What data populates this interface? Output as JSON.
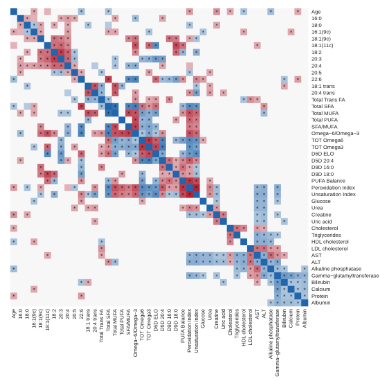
{
  "chart_data": {
    "type": "heatmap",
    "title": "",
    "xlabel": "",
    "ylabel": "",
    "variables": [
      "Age",
      "16:0",
      "18:0",
      "16:1(9c)",
      "18:1(9c)",
      "18:1(11c)",
      "18:2",
      "20:3",
      "20:4",
      "20:5",
      "22:6",
      "18:1 trans",
      "20:4 trans",
      "Total Trans FA",
      "Total SFA",
      "Total MUFA",
      "Total PUFA",
      "SFA/MUFA",
      "Omega−6/Omega−3",
      "TOT Omega6",
      "TOT Omega3",
      "D6D ELO",
      "D5D 20:4",
      "D9D 16:0",
      "D9D 18:0",
      "PUFA Balance",
      "Peroxidation Index",
      "Unsaturation Index",
      "Glucose",
      "Urea",
      "Creatine",
      "Uric acid",
      "Cholesterol",
      "Triglycerides",
      "HDL cholesterol",
      "LDL cholesterol",
      "AST",
      "ALT",
      "Alkaline phosphatase",
      "Gamma−glutamyltransferase",
      "Bilirubin",
      "Calcium",
      "Protein",
      "Albumin"
    ],
    "colors": {
      "negative": "#2166ac",
      "neutral": "#f7f7f7",
      "positive": "#b2182b"
    },
    "value_range": [
      -1,
      1
    ],
    "legend": "none",
    "significance_marker": "*",
    "correlations": [
      [
        10,
        14,
        0.8
      ],
      [
        10,
        17,
        -0.7
      ],
      [
        10,
        18,
        -0.75
      ],
      [
        10,
        21,
        0.6
      ],
      [
        10,
        22,
        -0.35
      ],
      [
        10,
        23,
        -0.4
      ],
      [
        10,
        24,
        -0.55
      ],
      [
        10,
        27,
        0.45
      ],
      [
        10,
        28,
        0.35
      ],
      [
        10,
        25,
        0.4
      ],
      [
        10,
        42,
        0.35
      ],
      [
        10,
        40,
        -0.3
      ],
      [
        11,
        12,
        0.7
      ],
      [
        11,
        15,
        0.7
      ],
      [
        11,
        13,
        -0.45
      ],
      [
        11,
        16,
        -0.4
      ],
      [
        11,
        27,
        -0.3
      ],
      [
        11,
        29,
        0.3
      ],
      [
        11,
        40,
        0.3
      ],
      [
        12,
        15,
        0.65
      ],
      [
        12,
        13,
        -0.4
      ],
      [
        12,
        18,
        0.35
      ],
      [
        12,
        26,
        0.4
      ],
      [
        12,
        27,
        -0.55
      ],
      [
        12,
        29,
        0.35
      ],
      [
        12,
        31,
        0.3
      ],
      [
        13,
        14,
        -0.35
      ],
      [
        13,
        18,
        0.4
      ],
      [
        13,
        20,
        0.3
      ],
      [
        13,
        21,
        0.35
      ],
      [
        13,
        23,
        0.45
      ],
      [
        13,
        34,
        -0.3
      ],
      [
        13,
        35,
        0.4
      ],
      [
        13,
        36,
        0.3
      ],
      [
        14,
        15,
        -0.9
      ],
      [
        14,
        17,
        -0.75
      ],
      [
        14,
        18,
        -0.8
      ],
      [
        14,
        19,
        0.55
      ],
      [
        14,
        20,
        0.4
      ],
      [
        14,
        21,
        0.55
      ],
      [
        14,
        25,
        -0.4
      ],
      [
        14,
        26,
        -0.7
      ],
      [
        14,
        27,
        -0.65
      ],
      [
        14,
        37,
        0.4
      ],
      [
        15,
        17,
        0.75
      ],
      [
        15,
        18,
        0.7
      ],
      [
        15,
        19,
        -0.55
      ],
      [
        15,
        20,
        -0.45
      ],
      [
        15,
        21,
        -0.55
      ],
      [
        15,
        25,
        0.4
      ],
      [
        15,
        26,
        0.7
      ],
      [
        15,
        27,
        0.6
      ],
      [
        15,
        37,
        -0.35
      ],
      [
        16,
        18,
        0.75
      ],
      [
        16,
        19,
        -0.4
      ],
      [
        16,
        20,
        -0.45
      ],
      [
        16,
        24,
        0.35
      ],
      [
        16,
        26,
        0.6
      ],
      [
        16,
        27,
        0.5
      ],
      [
        17,
        18,
        0.8
      ],
      [
        17,
        19,
        -0.45
      ],
      [
        17,
        20,
        -0.5
      ],
      [
        17,
        21,
        -0.4
      ],
      [
        17,
        26,
        0.5
      ],
      [
        17,
        27,
        0.45
      ],
      [
        18,
        19,
        -0.3
      ],
      [
        18,
        20,
        -0.5
      ],
      [
        18,
        21,
        -0.3
      ],
      [
        18,
        22,
        0.4
      ],
      [
        18,
        26,
        0.7
      ],
      [
        18,
        27,
        0.6
      ],
      [
        19,
        20,
        0.85
      ],
      [
        19,
        21,
        0.65
      ],
      [
        19,
        22,
        -0.75
      ],
      [
        19,
        24,
        -0.4
      ],
      [
        19,
        25,
        -0.55
      ],
      [
        19,
        26,
        -0.7
      ],
      [
        19,
        27,
        -0.65
      ],
      [
        19,
        28,
        0.3
      ],
      [
        20,
        21,
        0.75
      ],
      [
        20,
        22,
        -0.8
      ],
      [
        20,
        26,
        -0.65
      ],
      [
        20,
        27,
        -0.55
      ],
      [
        21,
        22,
        -0.5
      ],
      [
        21,
        25,
        -0.4
      ],
      [
        21,
        26,
        -0.6
      ],
      [
        21,
        27,
        -0.7
      ],
      [
        22,
        23,
        0.55
      ],
      [
        22,
        24,
        0.3
      ],
      [
        22,
        25,
        0.45
      ],
      [
        22,
        26,
        0.65
      ],
      [
        22,
        27,
        0.45
      ],
      [
        23,
        24,
        0.3
      ],
      [
        23,
        25,
        0.55
      ],
      [
        23,
        26,
        0.35
      ],
      [
        23,
        27,
        -0.3
      ],
      [
        24,
        25,
        0.4
      ],
      [
        24,
        26,
        0.35
      ],
      [
        24,
        27,
        -0.35
      ],
      [
        25,
        26,
        0.85
      ],
      [
        25,
        27,
        0.75
      ],
      [
        25,
        29,
        0.3
      ],
      [
        26,
        27,
        0.95
      ],
      [
        26,
        29,
        0.45
      ],
      [
        26,
        30,
        -0.35
      ],
      [
        26,
        36,
        -0.4
      ],
      [
        26,
        37,
        -0.45
      ],
      [
        26,
        39,
        -0.45
      ],
      [
        27,
        29,
        0.4
      ],
      [
        27,
        30,
        -0.35
      ],
      [
        27,
        36,
        -0.45
      ],
      [
        27,
        37,
        -0.45
      ],
      [
        27,
        39,
        -0.4
      ],
      [
        28,
        36,
        -0.4
      ],
      [
        28,
        37,
        -0.4
      ],
      [
        28,
        39,
        -0.3
      ],
      [
        28,
        30,
        -0.3
      ],
      [
        29,
        36,
        -0.4
      ],
      [
        29,
        37,
        -0.4
      ],
      [
        29,
        30,
        0.35
      ],
      [
        30,
        31,
        0.5
      ],
      [
        30,
        36,
        -0.3
      ],
      [
        30,
        37,
        -0.35
      ],
      [
        30,
        39,
        -0.3
      ],
      [
        31,
        36,
        -0.3
      ],
      [
        31,
        37,
        -0.35
      ],
      [
        31,
        40,
        -0.3
      ],
      [
        32,
        33,
        0.55
      ],
      [
        32,
        34,
        0.45
      ],
      [
        32,
        36,
        0.35
      ],
      [
        32,
        37,
        0.3
      ],
      [
        33,
        36,
        -0.45
      ],
      [
        33,
        37,
        -0.4
      ],
      [
        33,
        38,
        -0.35
      ],
      [
        33,
        39,
        -0.3
      ],
      [
        34,
        36,
        -0.45
      ],
      [
        34,
        37,
        -0.45
      ],
      [
        34,
        38,
        -0.4
      ],
      [
        35,
        36,
        0.55
      ],
      [
        35,
        37,
        0.55
      ],
      [
        35,
        38,
        0.35
      ],
      [
        35,
        39,
        0.35
      ],
      [
        36,
        37,
        -0.45
      ],
      [
        36,
        38,
        0.6
      ],
      [
        36,
        39,
        0.4
      ],
      [
        36,
        40,
        0.3
      ],
      [
        37,
        38,
        -0.4
      ],
      [
        37,
        39,
        -0.5
      ],
      [
        38,
        39,
        -0.35
      ],
      [
        38,
        40,
        -0.3
      ],
      [
        38,
        43,
        -0.3
      ],
      [
        39,
        40,
        -0.6
      ],
      [
        39,
        41,
        -0.55
      ],
      [
        39,
        42,
        -0.45
      ],
      [
        39,
        43,
        -0.4
      ],
      [
        40,
        41,
        -0.3
      ],
      [
        40,
        42,
        -0.3
      ],
      [
        40,
        43,
        -0.35
      ],
      [
        41,
        42,
        -0.3
      ],
      [
        41,
        43,
        -0.35
      ],
      [
        41,
        44,
        0.7
      ],
      [
        42,
        43,
        -0.3
      ],
      [
        42,
        44,
        0.55
      ],
      [
        43,
        44,
        0.6
      ],
      [
        0,
        3,
        0.3
      ],
      [
        0,
        5,
        0.25
      ],
      [
        0,
        10,
        -0.35
      ],
      [
        0,
        14,
        -0.3
      ],
      [
        0,
        26,
        0.35
      ],
      [
        0,
        30,
        0.4
      ],
      [
        0,
        32,
        0.3
      ],
      [
        0,
        34,
        -0.3
      ],
      [
        0,
        38,
        -0.35
      ],
      [
        0,
        42,
        0.3
      ],
      [
        1,
        2,
        0.3
      ],
      [
        1,
        3,
        0.25
      ],
      [
        1,
        7,
        0.3
      ],
      [
        1,
        8,
        0.35
      ],
      [
        1,
        9,
        0.3
      ],
      [
        1,
        15,
        0.3
      ],
      [
        1,
        18,
        -0.35
      ],
      [
        1,
        22,
        0.3
      ],
      [
        2,
        3,
        -0.3
      ],
      [
        2,
        4,
        0.3
      ],
      [
        2,
        6,
        0.3
      ],
      [
        2,
        8,
        0.3
      ],
      [
        2,
        11,
        -0.3
      ],
      [
        2,
        14,
        -0.25
      ],
      [
        2,
        26,
        -0.3
      ],
      [
        2,
        30,
        0.3
      ],
      [
        3,
        4,
        0.3
      ],
      [
        3,
        8,
        0.35
      ],
      [
        3,
        14,
        0.3
      ],
      [
        3,
        15,
        0.3
      ],
      [
        3,
        20,
        -0.3
      ],
      [
        3,
        28,
        -0.3
      ],
      [
        3,
        34,
        0.3
      ],
      [
        3,
        41,
        0.3
      ],
      [
        4,
        6,
        0.55
      ],
      [
        4,
        7,
        0.5
      ],
      [
        4,
        8,
        0.4
      ],
      [
        4,
        17,
        0.45
      ],
      [
        4,
        18,
        0.55
      ],
      [
        4,
        23,
        0.55
      ],
      [
        4,
        24,
        0.5
      ],
      [
        4,
        26,
        0.3
      ],
      [
        4,
        27,
        -0.3
      ],
      [
        5,
        6,
        0.55
      ],
      [
        5,
        7,
        0.6
      ],
      [
        5,
        8,
        0.45
      ],
      [
        5,
        18,
        0.7
      ],
      [
        5,
        20,
        0.6
      ],
      [
        5,
        21,
        -0.7
      ],
      [
        5,
        24,
        0.75
      ],
      [
        5,
        25,
        0.55
      ],
      [
        5,
        36,
        0.3
      ],
      [
        6,
        7,
        0.8
      ],
      [
        6,
        8,
        0.6
      ],
      [
        6,
        9,
        -0.3
      ],
      [
        6,
        18,
        0.45
      ],
      [
        6,
        24,
        0.6
      ],
      [
        6,
        25,
        -0.4
      ],
      [
        6,
        27,
        -0.45
      ],
      [
        7,
        8,
        0.6
      ],
      [
        7,
        9,
        -0.35
      ],
      [
        7,
        15,
        -0.3
      ],
      [
        7,
        19,
        -0.4
      ],
      [
        7,
        20,
        -0.45
      ],
      [
        7,
        21,
        -0.6
      ],
      [
        7,
        22,
        -0.55
      ],
      [
        8,
        9,
        0.3
      ],
      [
        8,
        12,
        -0.25
      ],
      [
        8,
        15,
        -0.3
      ],
      [
        8,
        17,
        -0.4
      ],
      [
        8,
        18,
        -0.45
      ],
      [
        8,
        22,
        0.3
      ],
      [
        8,
        26,
        0.25
      ],
      [
        9,
        10,
        0.3
      ],
      [
        9,
        13,
        -0.3
      ],
      [
        9,
        20,
        0.35
      ],
      [
        9,
        26,
        -0.3
      ],
      [
        9,
        29,
        0.3
      ]
    ]
  }
}
